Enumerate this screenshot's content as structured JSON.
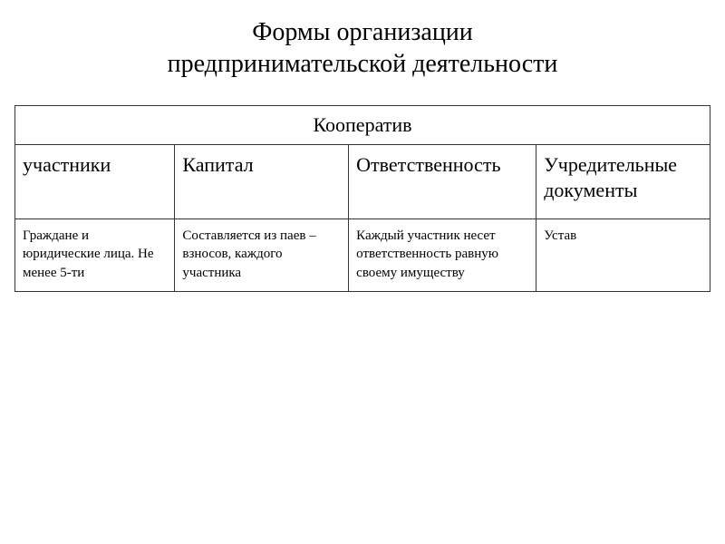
{
  "title_line1": "Формы организации",
  "title_line2": "предпринимательской деятельности",
  "table": {
    "header": "Кооператив",
    "columns": [
      "участники",
      "Капитал",
      "Ответственность",
      "Учредительные документы"
    ],
    "rows": [
      [
        "Граждане и юридические лица. Не менее 5-ти",
        "Составляется из паев – взносов, каждого участника",
        "Каждый участник несет ответственность равную своему имуществу",
        "Устав"
      ]
    ],
    "col_widths_pct": [
      23,
      25,
      27,
      25
    ],
    "border_color": "#333333",
    "background_color": "#ffffff",
    "header_fontsize": 22,
    "col_fontsize": 22,
    "body_fontsize": 15
  }
}
